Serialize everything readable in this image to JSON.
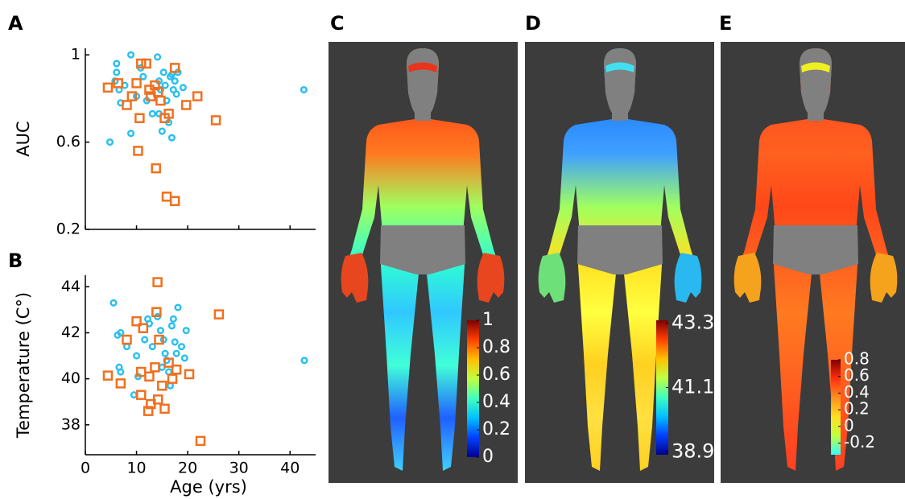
{
  "chart_data": [
    {
      "type": "scatter",
      "label": "A",
      "ylabel": "AUC",
      "xlim": [
        0,
        45
      ],
      "ylim": [
        0.2,
        1.03
      ],
      "xticks": [
        0,
        10,
        20,
        30,
        40
      ],
      "yticks": [
        0.2,
        0.6,
        1
      ],
      "xtick_labels": false,
      "series": [
        {
          "color": "#29c0ee",
          "marker": "circle",
          "x": [
            4.8,
            6.1,
            6.1,
            5.8,
            6.6,
            6.9,
            8.9,
            8.9,
            10,
            11.3,
            12,
            13.1,
            14.1,
            14.4,
            14.7,
            15.3,
            15.6,
            15.9,
            16.3,
            16.6,
            16.9,
            17.2,
            17.5,
            17.8,
            16.9,
            15,
            18.1,
            19.1,
            14.4,
            42.7,
            7.7,
            10.8
          ],
          "values": [
            0.6,
            0.96,
            0.92,
            0.88,
            0.84,
            0.78,
            1.0,
            0.64,
            0.81,
            0.9,
            0.79,
            0.73,
            0.99,
            0.88,
            0.84,
            0.92,
            0.86,
            0.79,
            0.69,
            0.9,
            0.91,
            0.84,
            0.88,
            0.82,
            0.62,
            0.65,
            0.92,
            0.85,
            0.73,
            0.84,
            0.86,
            0.94
          ]
        },
        {
          "color": "#f07020",
          "marker": "square",
          "x": [
            4.4,
            6.4,
            8.1,
            10,
            10.9,
            11.9,
            12.5,
            13.6,
            14.2,
            14.7,
            15.5,
            16.3,
            17.5,
            19.7,
            21.9,
            25.5,
            10.6,
            10.3,
            13.8,
            15.9,
            17.5,
            9.1,
            12.8
          ],
          "values": [
            0.85,
            0.87,
            0.77,
            0.87,
            0.96,
            0.96,
            0.84,
            0.86,
            0.83,
            0.79,
            0.71,
            0.73,
            0.94,
            0.77,
            0.81,
            0.7,
            0.71,
            0.56,
            0.48,
            0.35,
            0.33,
            0.81,
            0.81
          ]
        }
      ]
    },
    {
      "type": "scatter",
      "label": "B",
      "ylabel": "Temperature (C°)",
      "xlabel": "Age (yrs)",
      "xlim": [
        0,
        45
      ],
      "ylim": [
        36.7,
        44.5
      ],
      "xticks": [
        0,
        10,
        20,
        30,
        40
      ],
      "yticks": [
        38,
        40,
        42,
        44
      ],
      "xtick_labels": true,
      "series": [
        {
          "color": "#29c0ee",
          "marker": "circle",
          "x": [
            5.5,
            6.3,
            6.9,
            6.6,
            6.9,
            9.5,
            10,
            10.3,
            11.6,
            12.2,
            12.5,
            13.1,
            14.7,
            15.3,
            15.6,
            15.9,
            16.3,
            16.6,
            16.9,
            17.2,
            17.5,
            17.8,
            18.1,
            18.8,
            19.4,
            19.7,
            42.8,
            14.1,
            15,
            8.1
          ],
          "values": [
            43.3,
            41.9,
            42,
            40.5,
            40.3,
            39.3,
            41,
            40.1,
            41.7,
            42.6,
            42.4,
            41.4,
            42.1,
            41.7,
            41.1,
            40.8,
            40.3,
            39.7,
            42.3,
            42.6,
            41.6,
            41.1,
            43.1,
            41.4,
            40.9,
            42.1,
            40.8,
            42.7,
            40.5,
            41.4
          ]
        },
        {
          "color": "#f07020",
          "marker": "square",
          "x": [
            4.4,
            6.9,
            8.1,
            10,
            11.3,
            10.9,
            10.9,
            12.3,
            12.8,
            14.1,
            13.9,
            13.6,
            14.4,
            15,
            15.5,
            16.3,
            17,
            17.8,
            20.3,
            26.1,
            22.5,
            12.5,
            14.2
          ],
          "values": [
            40.14,
            39.8,
            41.7,
            42.5,
            42.2,
            40.3,
            39.3,
            38.6,
            38.9,
            44.2,
            42.9,
            40.5,
            41.7,
            39.7,
            38.7,
            40.7,
            40,
            40.4,
            40.2,
            42.8,
            37.3,
            40.1,
            39.1
          ]
        }
      ]
    },
    {
      "type": "body-map",
      "label": "C",
      "clim": [
        0,
        1
      ],
      "cticks": [
        0,
        0.2,
        0.4,
        0.6,
        0.8,
        1
      ],
      "colormap": [
        "#00008f",
        "#0040ff",
        "#00c0ff",
        "#40ffbf",
        "#c0ff40",
        "#ffc000",
        "#ff4000",
        "#800000"
      ],
      "body_colors": [
        "#ffb020",
        "#ff4818",
        "#ff7a20",
        "#9fff60",
        "#30ffd0",
        "#30c8ff",
        "#40ffd8",
        "#2060ff",
        "#40d0ff"
      ],
      "hand_colors": [
        "#e8461e",
        "#e8461e"
      ],
      "forehead_color": "#e8341c"
    },
    {
      "type": "body-map",
      "label": "D",
      "clim": [
        38.8,
        43.4
      ],
      "cticks": [
        38.9,
        41.1,
        43.3
      ],
      "colormap": [
        "#00008f",
        "#0040ff",
        "#00c0ff",
        "#40ffbf",
        "#c0ff40",
        "#ffc000",
        "#ff4000",
        "#800000"
      ],
      "body_colors": [
        "#40c0ff",
        "#2080ff",
        "#40a0ff",
        "#a0ff60",
        "#ffe020",
        "#ffff40",
        "#ffd020",
        "#ffe040",
        "#ffd020"
      ],
      "hand_colors": [
        "#6ee07a",
        "#29b8f0"
      ],
      "forehead_color": "#40e0f0"
    },
    {
      "type": "body-map",
      "label": "E",
      "clim": [
        -0.34,
        0.8
      ],
      "cticks": [
        -0.2,
        0,
        0.2,
        0.4,
        0.6,
        0.8
      ],
      "colormap": [
        "#30ffff",
        "#c0ff40",
        "#ffe020",
        "#ff9020",
        "#ff3010",
        "#800000"
      ],
      "body_colors": [
        "#ff8020",
        "#ff5020",
        "#ff6020",
        "#ff4818",
        "#ff6020",
        "#ff7a20",
        "#ff6820",
        "#ff5020",
        "#ff4020"
      ],
      "hand_colors": [
        "#f5a21c",
        "#f5a21c"
      ],
      "forehead_color": "#f0f020"
    }
  ]
}
